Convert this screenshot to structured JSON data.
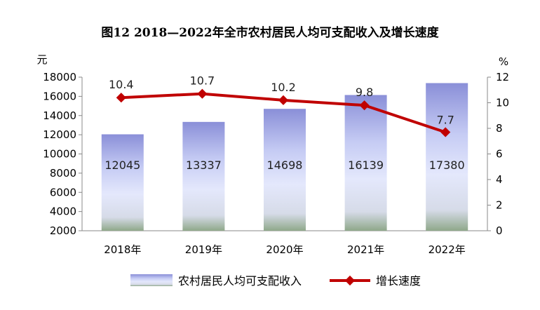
{
  "title": "图12  2018—2022年全市农村居民人均可支配收入及增长速度",
  "chart_data": {
    "type": "bar+line",
    "categories": [
      "2018年",
      "2019年",
      "2020年",
      "2021年",
      "2022年"
    ],
    "series": [
      {
        "name": "农村居民人均可支配收入",
        "type": "bar",
        "axis": "left",
        "values": [
          12045,
          13337,
          14698,
          16139,
          17380
        ]
      },
      {
        "name": "增长速度",
        "type": "line",
        "axis": "right",
        "values": [
          10.4,
          10.7,
          10.2,
          9.8,
          7.7
        ]
      }
    ],
    "left_axis": {
      "unit": "元",
      "min": 2000,
      "max": 18000,
      "step": 2000,
      "ticks": [
        "2000",
        "4000",
        "6000",
        "8000",
        "10000",
        "12000",
        "14000",
        "16000",
        "18000"
      ]
    },
    "right_axis": {
      "unit": "%",
      "min": 0,
      "max": 12,
      "step": 2,
      "ticks": [
        "0",
        "2",
        "4",
        "6",
        "8",
        "10",
        "12"
      ]
    },
    "colors": {
      "bar_top": "#8a8fd8",
      "bar_mid": "#dfe3fb",
      "bar_bottom": "#8fa88a",
      "line": "#c00000"
    },
    "legend_position": "bottom",
    "legend": [
      "农村居民人均可支配收入",
      "增长速度"
    ]
  }
}
